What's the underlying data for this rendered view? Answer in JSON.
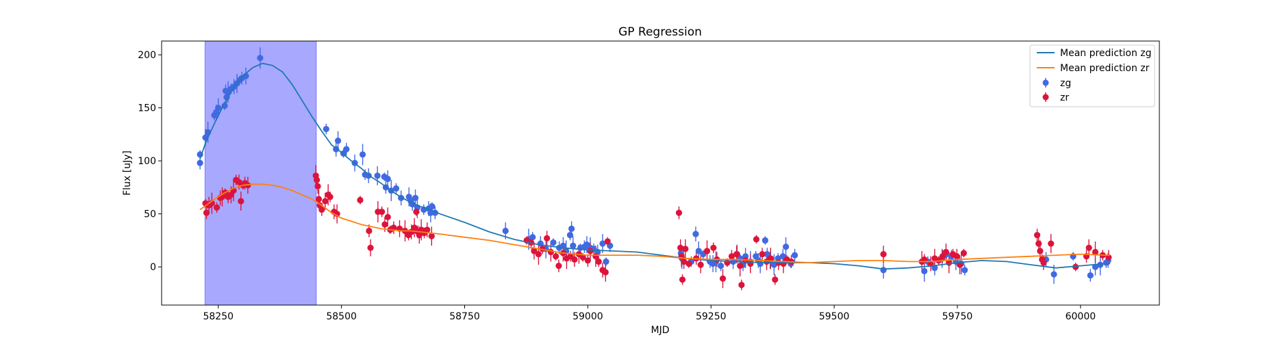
{
  "chart_data": {
    "type": "scatter",
    "title": "GP Regression",
    "xlabel": "MJD",
    "ylabel": "Flux [uJy]",
    "xlim": [
      58135,
      60160
    ],
    "ylim": [
      -36,
      213
    ],
    "xticks": [
      58250,
      58500,
      58750,
      59000,
      59250,
      59500,
      59750,
      60000
    ],
    "yticks": [
      0,
      50,
      100,
      150,
      200
    ],
    "grid": false,
    "legend_position": "top-right",
    "shaded_region": {
      "x0": 58223,
      "x1": 58449,
      "color": "#0000ff",
      "opacity": 0.34
    },
    "lines": [
      {
        "name": "Mean prediction zg",
        "color": "#1f77b4",
        "x": [
          58213,
          58225,
          58240,
          58260,
          58280,
          58300,
          58320,
          58340,
          58360,
          58380,
          58400,
          58420,
          58440,
          58460,
          58480,
          58500,
          58520,
          58540,
          58560,
          58580,
          58600,
          58620,
          58640,
          58660,
          58680,
          58700,
          58750,
          58800,
          58850,
          58900,
          58950,
          59000,
          59050,
          59100,
          59150,
          59200,
          59250,
          59300,
          59350,
          59400,
          59450,
          59500,
          59550,
          59600,
          59650,
          59700,
          59750,
          59800,
          59850,
          59900,
          59950,
          60000,
          60050,
          60060
        ],
        "y": [
          102,
          118,
          133,
          152,
          168,
          180,
          188,
          192,
          190,
          184,
          172,
          157,
          142,
          128,
          115,
          108,
          100,
          93,
          85,
          79,
          72,
          66,
          61,
          57,
          54,
          50,
          42,
          33,
          26,
          21,
          18,
          16,
          15,
          14,
          11,
          8,
          6,
          5,
          4,
          4,
          4,
          3,
          1,
          -2,
          -1,
          1,
          4,
          6,
          5,
          2,
          -1,
          1,
          3,
          3
        ]
      },
      {
        "name": "Mean prediction zr",
        "color": "#ff7f0e",
        "x": [
          58213,
          58225,
          58240,
          58260,
          58280,
          58300,
          58320,
          58340,
          58360,
          58380,
          58400,
          58420,
          58440,
          58460,
          58480,
          58500,
          58520,
          58540,
          58560,
          58580,
          58600,
          58620,
          58640,
          58660,
          58680,
          58700,
          58750,
          58800,
          58850,
          58900,
          58950,
          59000,
          59050,
          59100,
          59150,
          59200,
          59250,
          59300,
          59350,
          59400,
          59450,
          59500,
          59550,
          59600,
          59650,
          59700,
          59750,
          59800,
          59850,
          59900,
          59950,
          60000,
          60050,
          60060
        ],
        "y": [
          54,
          58,
          63,
          69,
          74,
          77,
          78,
          78,
          77,
          75,
          72,
          68,
          64,
          58,
          51,
          46,
          43,
          40,
          38,
          36,
          35,
          34,
          34,
          33,
          32,
          31,
          28,
          25,
          21,
          17,
          13,
          11,
          11,
          11,
          10,
          8,
          7,
          7,
          6,
          5,
          4,
          5,
          6,
          6,
          5,
          5,
          7,
          8,
          9,
          10,
          11,
          12,
          11,
          11
        ]
      }
    ],
    "series": [
      {
        "name": "zg",
        "color": "#4169e1",
        "data": [
          [
            58213,
            106
          ],
          [
            58213,
            98
          ],
          [
            58224,
            122
          ],
          [
            58229,
            127
          ],
          [
            58242,
            143
          ],
          [
            58246,
            146
          ],
          [
            58250,
            150
          ],
          [
            58263,
            152
          ],
          [
            58265,
            166
          ],
          [
            58267,
            160
          ],
          [
            58270,
            165
          ],
          [
            58276,
            168
          ],
          [
            58282,
            170
          ],
          [
            58288,
            173
          ],
          [
            58293,
            176
          ],
          [
            58298,
            178
          ],
          [
            58306,
            180
          ],
          [
            58335,
            197
          ],
          [
            58469,
            130
          ],
          [
            58489,
            111
          ],
          [
            58493,
            119
          ],
          [
            58504,
            107
          ],
          [
            58510,
            111
          ],
          [
            58527,
            98
          ],
          [
            58543,
            106
          ],
          [
            58548,
            87
          ],
          [
            58555,
            86
          ],
          [
            58573,
            86
          ],
          [
            58587,
            85
          ],
          [
            58590,
            75
          ],
          [
            58594,
            83
          ],
          [
            58601,
            72
          ],
          [
            58611,
            74
          ],
          [
            58621,
            65
          ],
          [
            58637,
            66
          ],
          [
            58641,
            62
          ],
          [
            58644,
            59
          ],
          [
            58650,
            65
          ],
          [
            58654,
            56
          ],
          [
            58667,
            54
          ],
          [
            58677,
            55
          ],
          [
            58681,
            51
          ],
          [
            58684,
            57
          ],
          [
            58690,
            51
          ],
          [
            58833,
            34
          ],
          [
            58880,
            26
          ],
          [
            58888,
            28
          ],
          [
            58904,
            22
          ],
          [
            58915,
            17
          ],
          [
            58930,
            23
          ],
          [
            58942,
            18
          ],
          [
            58950,
            20
          ],
          [
            58956,
            15
          ],
          [
            58964,
            30
          ],
          [
            58967,
            36
          ],
          [
            58970,
            20
          ],
          [
            58985,
            18
          ],
          [
            58993,
            19
          ],
          [
            58998,
            21
          ],
          [
            59005,
            18
          ],
          [
            59012,
            17
          ],
          [
            59020,
            14
          ],
          [
            59030,
            22
          ],
          [
            59037,
            5
          ],
          [
            59045,
            20
          ],
          [
            59189,
            13
          ],
          [
            59191,
            8
          ],
          [
            59210,
            5
          ],
          [
            59219,
            31
          ],
          [
            59225,
            15
          ],
          [
            59234,
            12
          ],
          [
            59248,
            5
          ],
          [
            59254,
            3
          ],
          [
            59260,
            5
          ],
          [
            59270,
            1
          ],
          [
            59295,
            5
          ],
          [
            59303,
            12
          ],
          [
            59309,
            8
          ],
          [
            59315,
            2
          ],
          [
            59320,
            10
          ],
          [
            59330,
            5
          ],
          [
            59341,
            10
          ],
          [
            59346,
            6
          ],
          [
            59350,
            3
          ],
          [
            59360,
            25
          ],
          [
            59364,
            12
          ],
          [
            59370,
            6
          ],
          [
            59378,
            2
          ],
          [
            59386,
            8
          ],
          [
            59396,
            10
          ],
          [
            59402,
            19
          ],
          [
            59412,
            3
          ],
          [
            59420,
            11
          ],
          [
            59600,
            -3
          ],
          [
            59683,
            -4
          ],
          [
            59690,
            5
          ],
          [
            59704,
            -1
          ],
          [
            59719,
            8
          ],
          [
            59728,
            12
          ],
          [
            59738,
            10
          ],
          [
            59747,
            5
          ],
          [
            59758,
            3
          ],
          [
            59765,
            -3
          ],
          [
            59930,
            7
          ],
          [
            59946,
            -7
          ],
          [
            59985,
            10
          ],
          [
            60020,
            -8
          ],
          [
            60030,
            0
          ],
          [
            60040,
            2
          ],
          [
            60052,
            4
          ],
          [
            60056,
            6
          ]
        ]
      },
      {
        "name": "zr",
        "color": "#dc143c",
        "data": [
          [
            58224,
            60
          ],
          [
            58226,
            51
          ],
          [
            58231,
            58
          ],
          [
            58237,
            60
          ],
          [
            58247,
            56
          ],
          [
            58254,
            65
          ],
          [
            58258,
            66
          ],
          [
            58264,
            70
          ],
          [
            58270,
            66
          ],
          [
            58276,
            68
          ],
          [
            58281,
            72
          ],
          [
            58286,
            82
          ],
          [
            58292,
            80
          ],
          [
            58296,
            62
          ],
          [
            58300,
            77
          ],
          [
            58304,
            79
          ],
          [
            58310,
            77
          ],
          [
            58448,
            86
          ],
          [
            58450,
            82
          ],
          [
            58452,
            76
          ],
          [
            58454,
            64
          ],
          [
            58456,
            58
          ],
          [
            58460,
            54
          ],
          [
            58467,
            62
          ],
          [
            58473,
            68
          ],
          [
            58477,
            66
          ],
          [
            58485,
            52
          ],
          [
            58491,
            50
          ],
          [
            58538,
            63
          ],
          [
            58556,
            34
          ],
          [
            58559,
            18
          ],
          [
            58574,
            52
          ],
          [
            58582,
            52
          ],
          [
            58588,
            40
          ],
          [
            58594,
            47
          ],
          [
            58599,
            35
          ],
          [
            58606,
            37
          ],
          [
            58618,
            36
          ],
          [
            58629,
            34
          ],
          [
            58636,
            30
          ],
          [
            58642,
            33
          ],
          [
            58648,
            37
          ],
          [
            58652,
            52
          ],
          [
            58655,
            33
          ],
          [
            58658,
            30
          ],
          [
            58662,
            35
          ],
          [
            58668,
            32
          ],
          [
            58674,
            35
          ],
          [
            58683,
            29
          ],
          [
            58876,
            25
          ],
          [
            58885,
            23
          ],
          [
            58891,
            15
          ],
          [
            58900,
            12
          ],
          [
            58908,
            17
          ],
          [
            58917,
            27
          ],
          [
            58925,
            14
          ],
          [
            58935,
            10
          ],
          [
            58941,
            1
          ],
          [
            58950,
            13
          ],
          [
            58957,
            8
          ],
          [
            58965,
            10
          ],
          [
            58973,
            7
          ],
          [
            58982,
            12
          ],
          [
            58990,
            9
          ],
          [
            59000,
            6
          ],
          [
            59005,
            15
          ],
          [
            59016,
            10
          ],
          [
            59022,
            5
          ],
          [
            59030,
            -3
          ],
          [
            59036,
            -5
          ],
          [
            59040,
            24
          ],
          [
            59185,
            51
          ],
          [
            59188,
            18
          ],
          [
            59190,
            10
          ],
          [
            59192,
            -12
          ],
          [
            59195,
            5
          ],
          [
            59198,
            17
          ],
          [
            59205,
            3
          ],
          [
            59220,
            8
          ],
          [
            59229,
            2
          ],
          [
            59242,
            15
          ],
          [
            59255,
            18
          ],
          [
            59262,
            7
          ],
          [
            59274,
            -11
          ],
          [
            59283,
            4
          ],
          [
            59292,
            10
          ],
          [
            59302,
            12
          ],
          [
            59309,
            1
          ],
          [
            59312,
            -17
          ],
          [
            59320,
            6
          ],
          [
            59330,
            3
          ],
          [
            59342,
            26
          ],
          [
            59354,
            12
          ],
          [
            59363,
            5
          ],
          [
            59371,
            8
          ],
          [
            59380,
            -12
          ],
          [
            59387,
            4
          ],
          [
            59397,
            3
          ],
          [
            59404,
            7
          ],
          [
            59413,
            5
          ],
          [
            59600,
            12
          ],
          [
            59678,
            5
          ],
          [
            59683,
            7
          ],
          [
            59696,
            3
          ],
          [
            59704,
            8
          ],
          [
            59712,
            6
          ],
          [
            59720,
            10
          ],
          [
            59727,
            14
          ],
          [
            59733,
            4
          ],
          [
            59741,
            12
          ],
          [
            59749,
            10
          ],
          [
            59755,
            2
          ],
          [
            59763,
            13
          ],
          [
            59912,
            30
          ],
          [
            59915,
            22
          ],
          [
            59918,
            15
          ],
          [
            59922,
            7
          ],
          [
            59925,
            4
          ],
          [
            59940,
            22
          ],
          [
            59990,
            0
          ],
          [
            60012,
            10
          ],
          [
            60017,
            18
          ],
          [
            60030,
            14
          ],
          [
            60045,
            11
          ],
          [
            60057,
            9
          ]
        ]
      }
    ],
    "legend": [
      "Mean prediction zg",
      "Mean prediction zr",
      "zg",
      "zr"
    ]
  }
}
